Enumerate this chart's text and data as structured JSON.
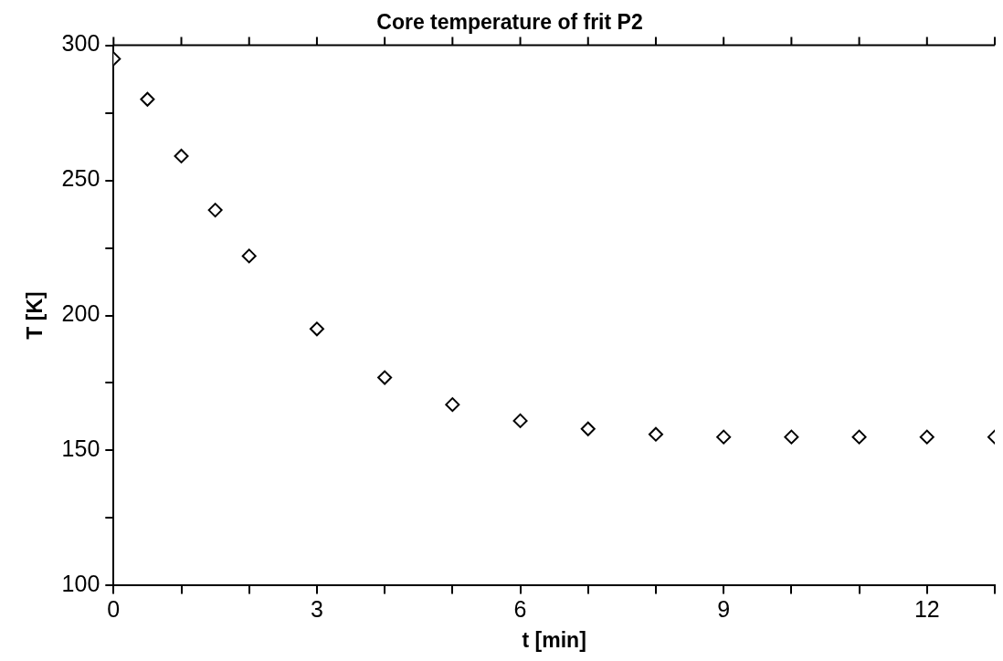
{
  "chart_data": {
    "type": "scatter",
    "title": "Core temperature of frit P2",
    "xlabel": "t [min]",
    "ylabel": "T [K]",
    "x": [
      0,
      0.5,
      1,
      1.5,
      2,
      3,
      4,
      5,
      6,
      7,
      8,
      9,
      10,
      11,
      12,
      13
    ],
    "series": [
      {
        "color": "#000000",
        "values": [
          295,
          280,
          259,
          239,
          222,
          195,
          177,
          167,
          161,
          158,
          156,
          155,
          155,
          155,
          155,
          155
        ]
      }
    ],
    "xlim": [
      0,
      13
    ],
    "xticks": [
      0,
      {
        "value": 1,
        "label": null
      },
      {
        "value": 2,
        "label": null
      },
      3,
      {
        "value": 4,
        "label": null
      },
      {
        "value": 5,
        "label": null
      },
      6,
      {
        "value": 7,
        "label": null
      },
      {
        "value": 8,
        "label": null
      },
      9,
      {
        "value": 10,
        "label": null
      },
      {
        "value": 11,
        "label": null
      },
      12,
      {
        "value": 13,
        "label": null
      }
    ],
    "ylim": [
      100,
      300
    ],
    "yticks": [
      100,
      {
        "value": 125,
        "label": null
      },
      150,
      {
        "value": 175,
        "label": null
      },
      200,
      {
        "value": 225,
        "label": null
      },
      250,
      {
        "value": 275,
        "label": null
      },
      300
    ],
    "marker": "diamond",
    "grid": false,
    "legend": false
  }
}
